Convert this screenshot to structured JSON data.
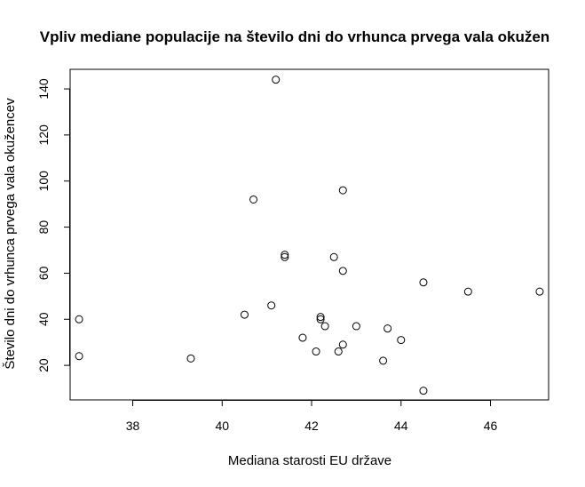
{
  "chart_data": {
    "type": "scatter",
    "title": "Vpliv mediane populacije na število dni do vrhunca prvega vala okužen",
    "xlabel": "Mediana starosti EU države",
    "ylabel": "Število dni do vrhunca prvega vala okužencev",
    "xlim": [
      36.6,
      47.3
    ],
    "ylim": [
      5.0,
      148.5
    ],
    "x_ticks": [
      38,
      40,
      42,
      44,
      46
    ],
    "y_ticks": [
      20,
      40,
      60,
      80,
      100,
      120,
      140
    ],
    "grid": false,
    "legend": "none",
    "marker": "open-circle",
    "points": [
      {
        "x": 41.2,
        "y": 144
      },
      {
        "x": 42.7,
        "y": 96
      },
      {
        "x": 40.7,
        "y": 92
      },
      {
        "x": 41.4,
        "y": 68
      },
      {
        "x": 41.4,
        "y": 67
      },
      {
        "x": 42.5,
        "y": 67
      },
      {
        "x": 42.7,
        "y": 61
      },
      {
        "x": 44.5,
        "y": 56
      },
      {
        "x": 45.5,
        "y": 52
      },
      {
        "x": 47.1,
        "y": 52
      },
      {
        "x": 41.1,
        "y": 46
      },
      {
        "x": 40.5,
        "y": 42
      },
      {
        "x": 42.2,
        "y": 41
      },
      {
        "x": 42.2,
        "y": 40
      },
      {
        "x": 36.8,
        "y": 40
      },
      {
        "x": 42.3,
        "y": 37
      },
      {
        "x": 43.0,
        "y": 37
      },
      {
        "x": 43.7,
        "y": 36
      },
      {
        "x": 41.8,
        "y": 32
      },
      {
        "x": 44.0,
        "y": 31
      },
      {
        "x": 42.7,
        "y": 29
      },
      {
        "x": 42.1,
        "y": 26
      },
      {
        "x": 42.6,
        "y": 26
      },
      {
        "x": 36.8,
        "y": 24
      },
      {
        "x": 39.3,
        "y": 23
      },
      {
        "x": 43.6,
        "y": 22
      },
      {
        "x": 44.5,
        "y": 9
      }
    ]
  }
}
